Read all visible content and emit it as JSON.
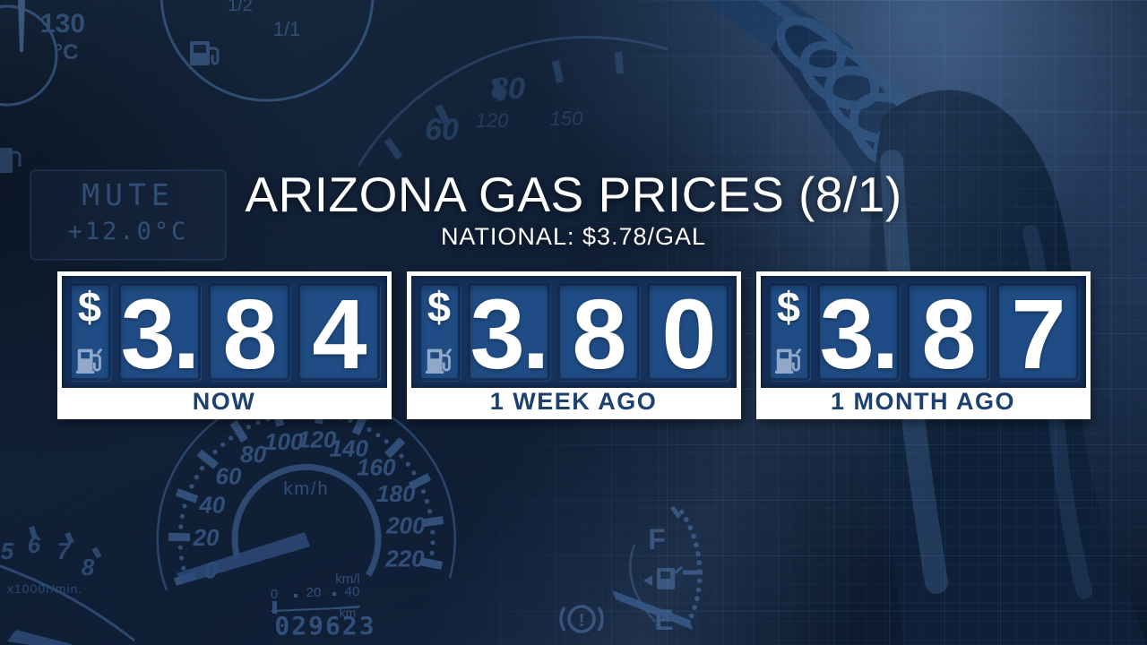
{
  "title": "ARIZONA GAS PRICES (8/1)",
  "subtitle": "NATIONAL: $3.78/GAL",
  "cards": [
    {
      "currency": "$",
      "digits": [
        "3.",
        "8",
        "4"
      ],
      "label": "NOW"
    },
    {
      "currency": "$",
      "digits": [
        "3.",
        "8",
        "0"
      ],
      "label": "1 WEEK AGO"
    },
    {
      "currency": "$",
      "digits": [
        "3.",
        "8",
        "7"
      ],
      "label": "1 MONTH AGO"
    }
  ],
  "chart_data": {
    "type": "table",
    "title": "ARIZONA GAS PRICES (8/1)",
    "subtitle": "NATIONAL: $3.78/GAL",
    "categories": [
      "NOW",
      "1 WEEK AGO",
      "1 MONTH AGO"
    ],
    "values": [
      3.84,
      3.8,
      3.87
    ],
    "unit": "$/GAL",
    "national_value": 3.78
  },
  "colors": {
    "background_navy": "#0e1d33",
    "card_panel_navy": "#15305a",
    "digit_slot_blue": "#1f4c84",
    "label_navy": "#1c4070",
    "card_white": "#ffffff",
    "dashboard_blue": "#4a72a8"
  },
  "background": {
    "temp_gauge": {
      "value": "130",
      "unit": "°C"
    },
    "fuel_top": {
      "half": "1/2",
      "full": "1/1"
    },
    "display": {
      "line1": "MUTE",
      "line2": "+12.0°C"
    },
    "upper_gauge": {
      "n60": "60",
      "n80": "80",
      "n120": "120",
      "n150": "150"
    },
    "speedometer": {
      "labels": [
        "0",
        "20",
        "40",
        "60",
        "80",
        "100",
        "120",
        "140",
        "160",
        "180",
        "200",
        "220"
      ],
      "unit": "km/h",
      "economy_unit": "km/l",
      "economy_ticks": {
        "e0": "0",
        "e20": "20",
        "e40": "40"
      },
      "odometer": "029623",
      "odometer_unit": "km"
    },
    "tachometer": {
      "labels": [
        "5",
        "6",
        "7",
        "8"
      ],
      "unit": "x1000r/min."
    },
    "fuel_gauge": {
      "full": "F",
      "empty": "E",
      "warn": "!"
    }
  }
}
